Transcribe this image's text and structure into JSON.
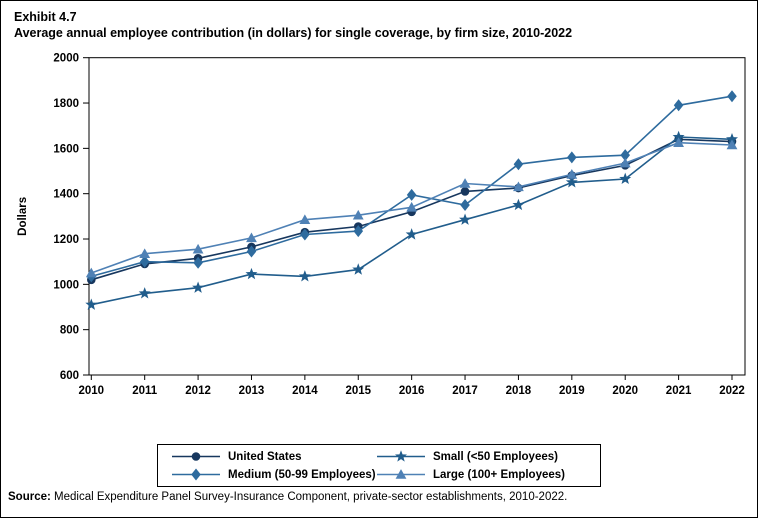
{
  "header": {
    "exhibit_label": "Exhibit 4.7",
    "title": "Average annual employee contribution (in dollars) for single coverage, by firm size, 2010-2022"
  },
  "footer": {
    "source_label": "Source:",
    "source_text": " Medical Expenditure Panel Survey-Insurance Component, private-sector establishments, 2010-2022."
  },
  "chart_data": {
    "type": "line",
    "title": "Average annual employee contribution (in dollars) for single coverage, by firm size, 2010-2022",
    "xlabel": "",
    "ylabel": "Dollars",
    "ylim": [
      600,
      2000
    ],
    "yticks": [
      600,
      800,
      1000,
      1200,
      1400,
      1600,
      1800,
      2000
    ],
    "x": [
      2010,
      2011,
      2012,
      2013,
      2014,
      2015,
      2016,
      2017,
      2018,
      2019,
      2020,
      2021,
      2022
    ],
    "grid": false,
    "legend_position": "bottom",
    "legend_order": [
      0,
      2,
      1,
      3
    ],
    "axis_color": "#000000",
    "series": [
      {
        "name": "United States",
        "marker": "circle",
        "color": "#17375e",
        "values": [
          1020,
          1090,
          1115,
          1165,
          1230,
          1255,
          1320,
          1410,
          1425,
          1480,
          1525,
          1640,
          1630
        ]
      },
      {
        "name": "Medium (50-99 Employees)",
        "marker": "diamond",
        "color": "#2e6b9e",
        "values": [
          1035,
          1100,
          1095,
          1145,
          1220,
          1235,
          1395,
          1350,
          1530,
          1560,
          1570,
          1790,
          1830
        ]
      },
      {
        "name": "Small (<50 Employees)",
        "marker": "star",
        "color": "#215d8c",
        "values": [
          910,
          960,
          985,
          1045,
          1035,
          1065,
          1220,
          1285,
          1350,
          1450,
          1465,
          1650,
          1640
        ]
      },
      {
        "name": "Large (100+ Employees)",
        "marker": "triangle",
        "color": "#4f81b5",
        "values": [
          1050,
          1135,
          1155,
          1205,
          1285,
          1305,
          1340,
          1445,
          1430,
          1485,
          1535,
          1625,
          1615
        ]
      }
    ]
  }
}
